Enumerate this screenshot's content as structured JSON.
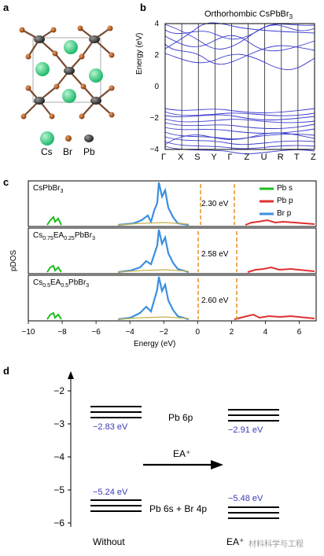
{
  "panels": {
    "a": {
      "label": "a",
      "legend": [
        "Cs",
        "Br",
        "Pb"
      ]
    },
    "b": {
      "label": "b",
      "title": "Orthorhombic CsPbBr3",
      "ylabel": "Energy (eV)",
      "yticks": [
        "4",
        "2",
        "0",
        "−2",
        "−4"
      ],
      "kpoints": [
        "Γ",
        "X",
        "S",
        "Y",
        "Γ",
        "Z",
        "U",
        "R",
        "T",
        "Z"
      ]
    },
    "c": {
      "label": "c",
      "ylabel": "pDOS",
      "xlabel": "Energy (eV)",
      "xticks": [
        "−10",
        "−8",
        "−6",
        "−4",
        "−2",
        "0",
        "2",
        "4",
        "6"
      ],
      "subpanels": [
        {
          "name": "CsPbBr3",
          "gap": "2.30 eV"
        },
        {
          "name": "Cs0.75EA0.25PbBr3",
          "gap": "2.58 eV"
        },
        {
          "name": "Cs0.5EA0.5PbBr3",
          "gap": "2.60 eV"
        }
      ],
      "legend": [
        {
          "name": "Pb s",
          "color": "#22bb22"
        },
        {
          "name": "Pb p",
          "color": "#e03030"
        },
        {
          "name": "Br p",
          "color": "#3b8fe0"
        }
      ]
    },
    "d": {
      "label": "d",
      "yticks": [
        "−2",
        "−3",
        "−4",
        "−5",
        "−6"
      ],
      "cb_label": "Pb 6p",
      "vb_label": "Pb 6s + Br 4p",
      "arrow_label": "EA⁺",
      "left": {
        "name": "Without",
        "cbm": "−2.83 eV",
        "vbm": "−5.24 eV"
      },
      "right": {
        "name": "EA⁺",
        "cbm": "−2.91 eV",
        "vbm": "−5.48 eV"
      },
      "watermark": "材料科学与工程"
    }
  },
  "chart_data": [
    {
      "type": "line",
      "panel": "b",
      "title": "Orthorhombic CsPbBr3",
      "ylabel": "Energy (eV)",
      "ylim": [
        -4,
        4
      ],
      "x": [
        "Γ",
        "X",
        "S",
        "Y",
        "Γ",
        "Z",
        "U",
        "R",
        "T",
        "Z"
      ]
    },
    {
      "type": "line",
      "panel": "c",
      "xlabel": "Energy (eV)",
      "ylabel": "pDOS",
      "xlim": [
        -10,
        7
      ],
      "series": [
        {
          "name": "Pb s",
          "color": "#22bb22"
        },
        {
          "name": "Pb p",
          "color": "#e03030"
        },
        {
          "name": "Br p",
          "color": "#3b8fe0"
        }
      ],
      "band_gaps_eV": [
        2.3,
        2.58,
        2.6
      ]
    },
    {
      "type": "bar",
      "panel": "d",
      "ylim": [
        -6.5,
        -1.5
      ],
      "categories": [
        "Without",
        "EA+"
      ],
      "series": [
        {
          "name": "CBM",
          "values": [
            -2.83,
            -2.91
          ]
        },
        {
          "name": "VBM",
          "values": [
            -5.24,
            -5.48
          ]
        }
      ]
    }
  ]
}
